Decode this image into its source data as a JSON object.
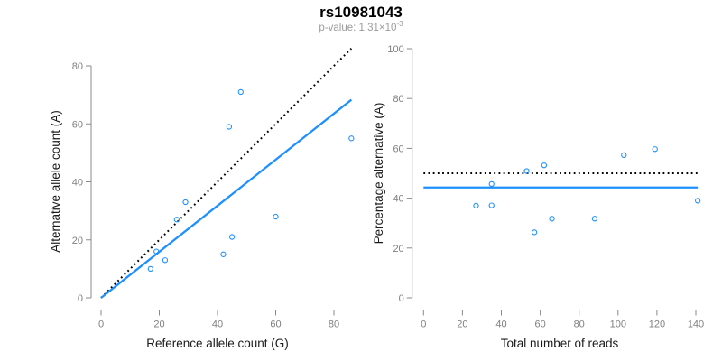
{
  "header": {
    "title": "rs10981043",
    "p_value": {
      "prefix": "p-value: ",
      "mantissa": "1.31",
      "times": "×",
      "base": "10",
      "exponent": "-3"
    }
  },
  "colors": {
    "point_stroke": "#1E90FF",
    "fit_line": "#1E90FF",
    "expected_line": "#000000",
    "axis_line": "#8a8a8a",
    "tick_label": "#7f7f7f",
    "axis_title": "#1a1a1a",
    "title": "#000000",
    "subtitle": "#9b9b9b"
  },
  "chart_data": [
    {
      "type": "scatter",
      "panel": "left",
      "xlabel": "Reference allele count (G)",
      "ylabel": "Alternative allele count (A)",
      "xlim": [
        0,
        86
      ],
      "ylim": [
        0,
        86
      ],
      "xticks": [
        0,
        20,
        40,
        60,
        80
      ],
      "yticks": [
        0,
        20,
        40,
        60,
        80
      ],
      "grid": false,
      "legend": "none",
      "points": [
        [
          17,
          10
        ],
        [
          19,
          16
        ],
        [
          22,
          13
        ],
        [
          26,
          27
        ],
        [
          29,
          33
        ],
        [
          42,
          15
        ],
        [
          44,
          59
        ],
        [
          45,
          21
        ],
        [
          48,
          71
        ],
        [
          60,
          28
        ],
        [
          86,
          55
        ]
      ],
      "lines": [
        {
          "name": "expected-1-to-1",
          "style": "dotted",
          "color": "#000000",
          "x1": 0,
          "y1": 0,
          "x2": 86,
          "y2": 86
        },
        {
          "name": "fit",
          "style": "solid",
          "color": "#1E90FF",
          "x1": 0,
          "y1": 0,
          "x2": 86,
          "y2": 68.3
        }
      ]
    },
    {
      "type": "scatter",
      "panel": "right",
      "xlabel": "Total number of reads",
      "ylabel": "Percentage alternative (A)",
      "xlim": [
        0,
        141
      ],
      "ylim": [
        0,
        100
      ],
      "xticks": [
        0,
        20,
        40,
        60,
        80,
        100,
        120,
        140
      ],
      "yticks": [
        0,
        20,
        40,
        60,
        80,
        100
      ],
      "grid": false,
      "legend": "none",
      "points": [
        [
          27,
          37.0
        ],
        [
          35,
          37.1
        ],
        [
          35,
          45.7
        ],
        [
          53,
          50.9
        ],
        [
          57,
          26.3
        ],
        [
          62,
          53.2
        ],
        [
          66,
          31.8
        ],
        [
          88,
          31.8
        ],
        [
          103,
          57.3
        ],
        [
          119,
          59.7
        ],
        [
          141,
          39.0
        ]
      ],
      "lines": [
        {
          "name": "expected-50-percent",
          "style": "dotted",
          "color": "#000000",
          "x1": 0,
          "y1": 50,
          "x2": 141,
          "y2": 50
        },
        {
          "name": "mean-percentage",
          "style": "solid",
          "color": "#1E90FF",
          "x1": 0,
          "y1": 44.3,
          "x2": 141,
          "y2": 44.3
        }
      ]
    }
  ]
}
